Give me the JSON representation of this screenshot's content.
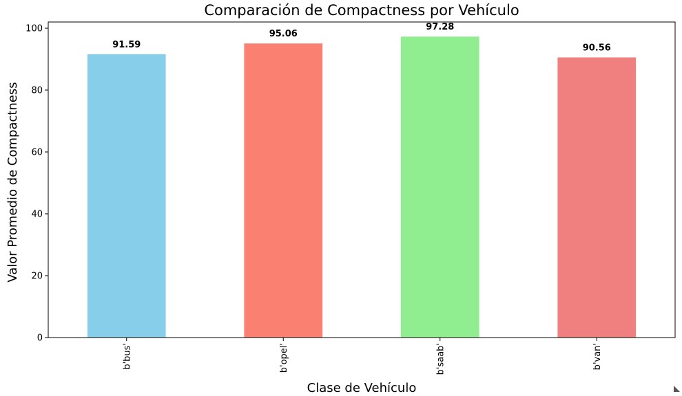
{
  "chart_data": {
    "type": "bar",
    "title": "Comparación de Compactness por Vehículo",
    "xlabel": "Clase de Vehículo",
    "ylabel": "Valor Promedio de Compactness",
    "categories": [
      "b'bus'",
      "b'opel'",
      "b'saab'",
      "b'van'"
    ],
    "values": [
      91.59,
      95.06,
      97.28,
      90.56
    ],
    "value_labels": [
      "91.59",
      "95.06",
      "97.28",
      "90.56"
    ],
    "colors": [
      "#87ceeb",
      "#fa8072",
      "#90ee90",
      "#f08080"
    ],
    "ylim": [
      0,
      102
    ],
    "yticks": [
      0,
      20,
      40,
      60,
      80,
      100
    ],
    "grid": false,
    "legend": false
  }
}
